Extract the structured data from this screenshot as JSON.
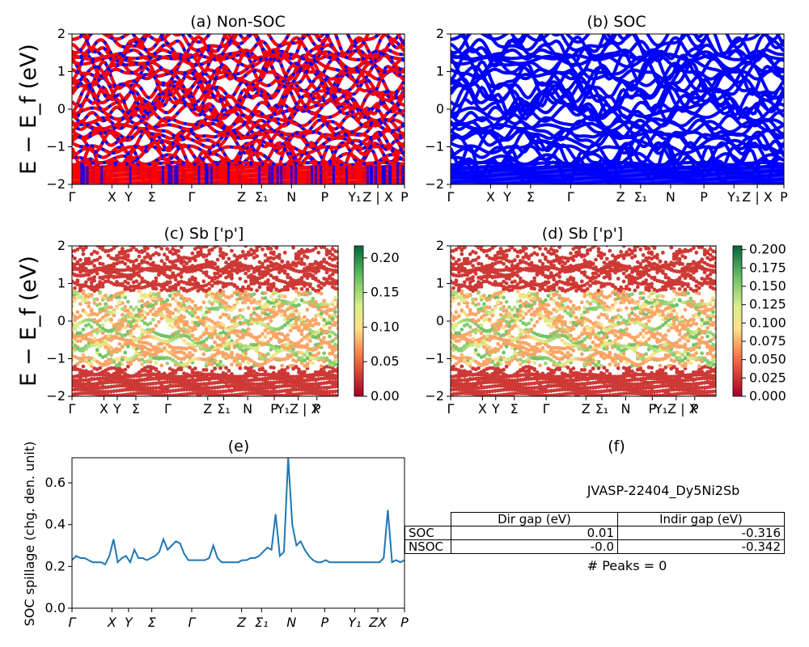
{
  "panels": {
    "a_title": "(a) Non-SOC",
    "b_title": "(b) SOC",
    "c_title": "(c)  Sb ['p']",
    "d_title": "(d) Sb ['p']",
    "e_title": "(e)",
    "f_title": "(f)"
  },
  "axis_labels": {
    "energy": "E − E_f (eV)",
    "spillage": "SOC spillage (chg. den. unit)"
  },
  "kpath_labels": [
    "Γ",
    "X",
    "Y",
    "Σ",
    "Γ",
    "Z",
    "Σ₁",
    "N",
    "P",
    "Y₁",
    "Z | X",
    "P"
  ],
  "kpath_labels_compact": [
    "Γ",
    "X",
    "Y",
    "Σ",
    "Γ",
    "Z",
    "Σ₁",
    "N",
    "P",
    "Y₁Z | X",
    "P"
  ],
  "kpath_labels_e": [
    "Γ",
    "X",
    "Y",
    "Σ",
    "Γ",
    "Z",
    "Σ₁",
    "N",
    "P",
    "Y₁",
    "ZX",
    "P"
  ],
  "energy_ticks": [
    "2",
    "1",
    "0",
    "−1",
    "−2"
  ],
  "spillage_ticks": [
    "0.6",
    "0.4",
    "0.2",
    "0.0"
  ],
  "colorbar_c_ticks": [
    "0.20",
    "0.15",
    "0.10",
    "0.05",
    "0.00"
  ],
  "colorbar_d_ticks": [
    "0.200",
    "0.175",
    "0.150",
    "0.125",
    "0.100",
    "0.075",
    "0.050",
    "0.025",
    "0.000"
  ],
  "colors": {
    "non_soc_a": "#0000ff",
    "non_soc_b": "#ff0000",
    "soc": "#0000ff",
    "spillage": "#1f77b4"
  },
  "table": {
    "title": "JVASP-22404_Dy5Ni2Sb",
    "headers": [
      "Dir gap (eV)",
      "Indir gap (eV)"
    ],
    "rows": [
      {
        "label": "SOC",
        "dir": "0.01",
        "indir": "-0.316"
      },
      {
        "label": "NSOC",
        "dir": "-0.0",
        "indir": "-0.342"
      }
    ],
    "peaks": "# Peaks = 0"
  },
  "chart_data": [
    {
      "type": "line",
      "title": "(a) Non-SOC",
      "ylabel": "E − E_f (eV)",
      "ylim": [
        -2,
        2
      ],
      "x": [
        "Γ",
        "X",
        "Y",
        "Σ",
        "Γ",
        "Z",
        "Σ₁",
        "N",
        "P",
        "Y₁",
        "Z | X",
        "P"
      ]
    },
    {
      "type": "line",
      "title": "(b) SOC",
      "ylim": [
        -2,
        2
      ],
      "x": [
        "Γ",
        "X",
        "Y",
        "Σ",
        "Γ",
        "Z",
        "Σ₁",
        "N",
        "P",
        "Y₁",
        "Z | X",
        "P"
      ]
    },
    {
      "type": "scatter",
      "title": "(c)  Sb ['p']",
      "ylabel": "E − E_f (eV)",
      "ylim": [
        -2,
        2
      ],
      "colorbar_range": [
        0.0,
        0.23
      ]
    },
    {
      "type": "scatter",
      "title": "(d) Sb ['p']",
      "ylim": [
        -2,
        2
      ],
      "colorbar_range": [
        0.0,
        0.21
      ]
    },
    {
      "type": "line",
      "title": "(e)",
      "ylabel": "SOC spillage (chg. den. unit)",
      "ylim": [
        0,
        0.72
      ],
      "series": [
        {
          "values": [
            0.23,
            0.25,
            0.24,
            0.24,
            0.23,
            0.22,
            0.22,
            0.22,
            0.21,
            0.25,
            0.33,
            0.22,
            0.24,
            0.25,
            0.22,
            0.28,
            0.24,
            0.24,
            0.23,
            0.24,
            0.25,
            0.27,
            0.33,
            0.28,
            0.3,
            0.32,
            0.31,
            0.26,
            0.23,
            0.23,
            0.23,
            0.23,
            0.23,
            0.24,
            0.3,
            0.24,
            0.22,
            0.22,
            0.22,
            0.22,
            0.22,
            0.23,
            0.23,
            0.24,
            0.24,
            0.25,
            0.27,
            0.29,
            0.28,
            0.45,
            0.25,
            0.27,
            0.72,
            0.4,
            0.3,
            0.32,
            0.28,
            0.25,
            0.23,
            0.22,
            0.22,
            0.23,
            0.22,
            0.22,
            0.22,
            0.22,
            0.22,
            0.22,
            0.22,
            0.22,
            0.22,
            0.22,
            0.22,
            0.22,
            0.22,
            0.24,
            0.47,
            0.22,
            0.23,
            0.22,
            0.23
          ]
        }
      ]
    }
  ]
}
